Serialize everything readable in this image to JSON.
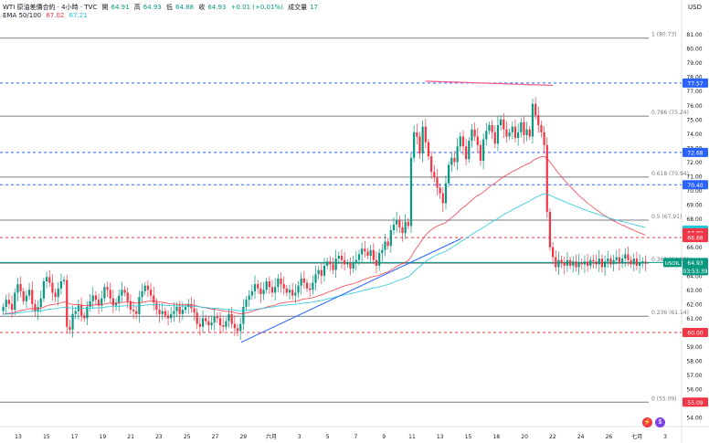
{
  "header": {
    "symbol": "WTI 原油差價合約 · 4小時 · TVC",
    "open_label": "開",
    "open": "64.91",
    "high_label": "高",
    "high": "64.93",
    "low_label": "低",
    "low": "64.88",
    "close_label": "收",
    "close": "64.93",
    "change": "+0.01 (+0.01%)",
    "volume_label": "成交量",
    "volume": "17",
    "ema_label": "EMA 50/100",
    "ema50": "67.02",
    "ema100": "67.21"
  },
  "currency": "USD",
  "colors": {
    "up": "#089981",
    "down": "#f23645",
    "ema50": "#f23645",
    "ema100": "#26c6da",
    "fib": "#787b86",
    "dashed_blue": "#2962ff",
    "dashed_red": "#f23645",
    "trendline": "#2962ff",
    "resistance": "#f06292"
  },
  "chart_data": {
    "type": "candlestick",
    "ylim": [
      53.5,
      82
    ],
    "y_ticks": [
      "54.00",
      "55.00",
      "56.00",
      "57.00",
      "58.00",
      "59.00",
      "60.00",
      "61.00",
      "62.00",
      "63.00",
      "64.00",
      "65.00",
      "66.00",
      "67.00",
      "68.00",
      "69.00",
      "70.00",
      "71.00",
      "72.00",
      "73.00",
      "74.00",
      "75.00",
      "76.00",
      "77.00",
      "78.00",
      "79.00",
      "80.00",
      "81.00"
    ],
    "x_ticks": [
      "13",
      "15",
      "17",
      "19",
      "21",
      "23",
      "25",
      "27",
      "29",
      "六月",
      "3",
      "5",
      "7",
      "9",
      "11",
      "13",
      "15",
      "18",
      "20",
      "22",
      "24",
      "26",
      "七月",
      "3"
    ],
    "price_badges": [
      {
        "value": "77.57",
        "style": "blue"
      },
      {
        "value": "72.68",
        "style": "blue"
      },
      {
        "value": "70.40",
        "style": "blue"
      },
      {
        "value": "67.21",
        "style": "cyan"
      },
      {
        "value": "67.02",
        "style": "red"
      },
      {
        "value": "66.68",
        "style": "red"
      },
      {
        "value": "USOIL",
        "style": "green"
      },
      {
        "value": "64.93",
        "style": "green"
      },
      {
        "value": "03:53:39",
        "style": "green"
      },
      {
        "value": "60.00",
        "style": "red"
      },
      {
        "value": "55.09",
        "style": "red"
      }
    ],
    "fib_levels": [
      {
        "label": "1 (80.73)",
        "value": 80.73
      },
      {
        "label": "0.786 (75.24)",
        "value": 75.24
      },
      {
        "label": "0.618 (70.94)",
        "value": 70.94
      },
      {
        "label": "0.5 (67.91)",
        "value": 67.91
      },
      {
        "label": "0.382 (64.88)",
        "value": 64.88
      },
      {
        "label": "0.236 (61.14)",
        "value": 61.14
      },
      {
        "label": "0 (55.09)",
        "value": 55.09
      }
    ],
    "horizontal_lines": [
      {
        "value": 77.57,
        "style": "blue-dashed"
      },
      {
        "value": 72.68,
        "style": "blue-dashed"
      },
      {
        "value": 70.4,
        "style": "blue-dashed"
      },
      {
        "value": 66.68,
        "style": "red-dashed"
      },
      {
        "value": 60.0,
        "style": "red-dashed"
      },
      {
        "value": 64.93,
        "style": "green-solid"
      }
    ],
    "candles_close": [
      61.8,
      62.3,
      62.0,
      61.6,
      62.8,
      63.4,
      62.9,
      62.2,
      62.6,
      63.0,
      62.0,
      61.5,
      61.8,
      62.4,
      63.6,
      63.9,
      63.5,
      62.8,
      62.5,
      63.1,
      63.6,
      63.7,
      60.4,
      60.2,
      61.3,
      61.5,
      61.9,
      61.2,
      61.0,
      61.8,
      62.2,
      62.6,
      62.3,
      61.9,
      62.4,
      63.2,
      63.0,
      62.4,
      61.9,
      62.1,
      62.6,
      63.0,
      62.8,
      62.2,
      61.6,
      61.5,
      61.3,
      62.5,
      62.9,
      63.3,
      63.0,
      62.6,
      62.1,
      61.6,
      61.3,
      61.5,
      61.2,
      61.0,
      61.3,
      61.5,
      61.8,
      61.3,
      61.6,
      61.8,
      62.0,
      61.7,
      61.4,
      60.6,
      60.4,
      61.0,
      60.8,
      60.5,
      60.7,
      61.1,
      61.0,
      60.5,
      60.4,
      60.8,
      61.3,
      60.6,
      60.3,
      60.1,
      60.6,
      61.8,
      62.3,
      62.6,
      62.9,
      63.4,
      63.1,
      62.7,
      63.0,
      63.6,
      63.2,
      62.8,
      63.2,
      63.8,
      63.4,
      63.1,
      62.8,
      63.0,
      62.6,
      62.8,
      63.3,
      63.8,
      63.5,
      63.1,
      63.0,
      63.5,
      64.1,
      64.4,
      64.0,
      64.7,
      65.0,
      64.8,
      64.4,
      65.2,
      65.4,
      65.1,
      64.8,
      64.9,
      64.5,
      64.9,
      65.1,
      65.5,
      65.9,
      65.7,
      65.4,
      65.8,
      65.1,
      64.7,
      65.6,
      65.8,
      66.4,
      66.1,
      67.2,
      67.6,
      67.9,
      67.4,
      67.0,
      67.8,
      67.5,
      72.3,
      74.1,
      73.8,
      72.6,
      74.5,
      73.4,
      72.4,
      71.3,
      70.9,
      70.2,
      69.8,
      69.1,
      70.5,
      71.8,
      72.3,
      72.0,
      73.1,
      73.8,
      73.1,
      72.2,
      73.5,
      74.3,
      73.8,
      73.2,
      72.1,
      73.6,
      74.2,
      74.6,
      74.1,
      73.3,
      74.6,
      75.0,
      74.3,
      73.8,
      74.1,
      74.5,
      73.7,
      74.1,
      74.8,
      73.9,
      74.3,
      73.8,
      76.1,
      75.3,
      74.6,
      74.1,
      73.2,
      68.5,
      66.0,
      65.3,
      64.6,
      65.1,
      64.9,
      64.7,
      65.1,
      64.7,
      65.0,
      64.6,
      64.9,
      64.8,
      65.0,
      64.7,
      65.1,
      65.0,
      64.8,
      65.2,
      64.6,
      65.0,
      65.2,
      64.8,
      65.1,
      65.3,
      64.9,
      65.2,
      65.5,
      65.1,
      64.8,
      65.2,
      64.7,
      64.9,
      65.0,
      64.93
    ],
    "ema50": "",
    "ema100": "",
    "trendline_up": {
      "from": [
        0.34,
        59.3
      ],
      "to": [
        0.65,
        66.6
      ]
    },
    "resistance_line": {
      "from": [
        0.6,
        77.7
      ],
      "to": [
        0.78,
        77.4
      ]
    }
  }
}
